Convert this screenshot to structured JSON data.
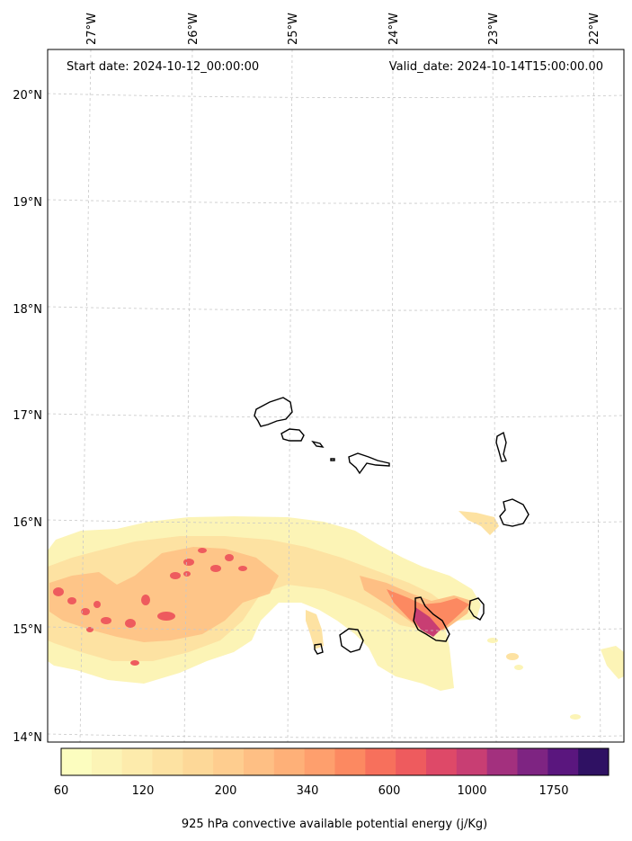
{
  "header": {
    "start_date": "Start date: 2024-10-12_00:00:00",
    "valid_date": "Valid_date: 2024-10-14T15:00:00.00"
  },
  "axes": {
    "lon_labels": [
      "27°W",
      "26°W",
      "25°W",
      "24°W",
      "23°W",
      "22°W"
    ],
    "lat_labels": [
      "20°N",
      "19°N",
      "18°N",
      "17°N",
      "16°N",
      "15°N",
      "14°N"
    ]
  },
  "colorbar": {
    "tick_labels": [
      "60",
      "120",
      "200",
      "340",
      "600",
      "1000",
      "1750"
    ],
    "label": "925 hPa convective available potential energy (j/Kg)",
    "colors": [
      "#fcfdbf",
      "#fcf4b6",
      "#fdebac",
      "#fde2a2",
      "#fdd898",
      "#fecd8f",
      "#febf84",
      "#feb078",
      "#fe9f6d",
      "#fc8961",
      "#f7705c",
      "#ee5b5e",
      "#de4968",
      "#c83e73",
      "#a3307e",
      "#7e2482",
      "#5a167e",
      "#2f1163"
    ]
  },
  "cape_colors": {
    "light": "#fcf4b6",
    "mid": "#fde2a2",
    "orange": "#febf84",
    "salmon": "#fc8961",
    "red": "#ee5b5e",
    "magenta": "#c83e73"
  }
}
